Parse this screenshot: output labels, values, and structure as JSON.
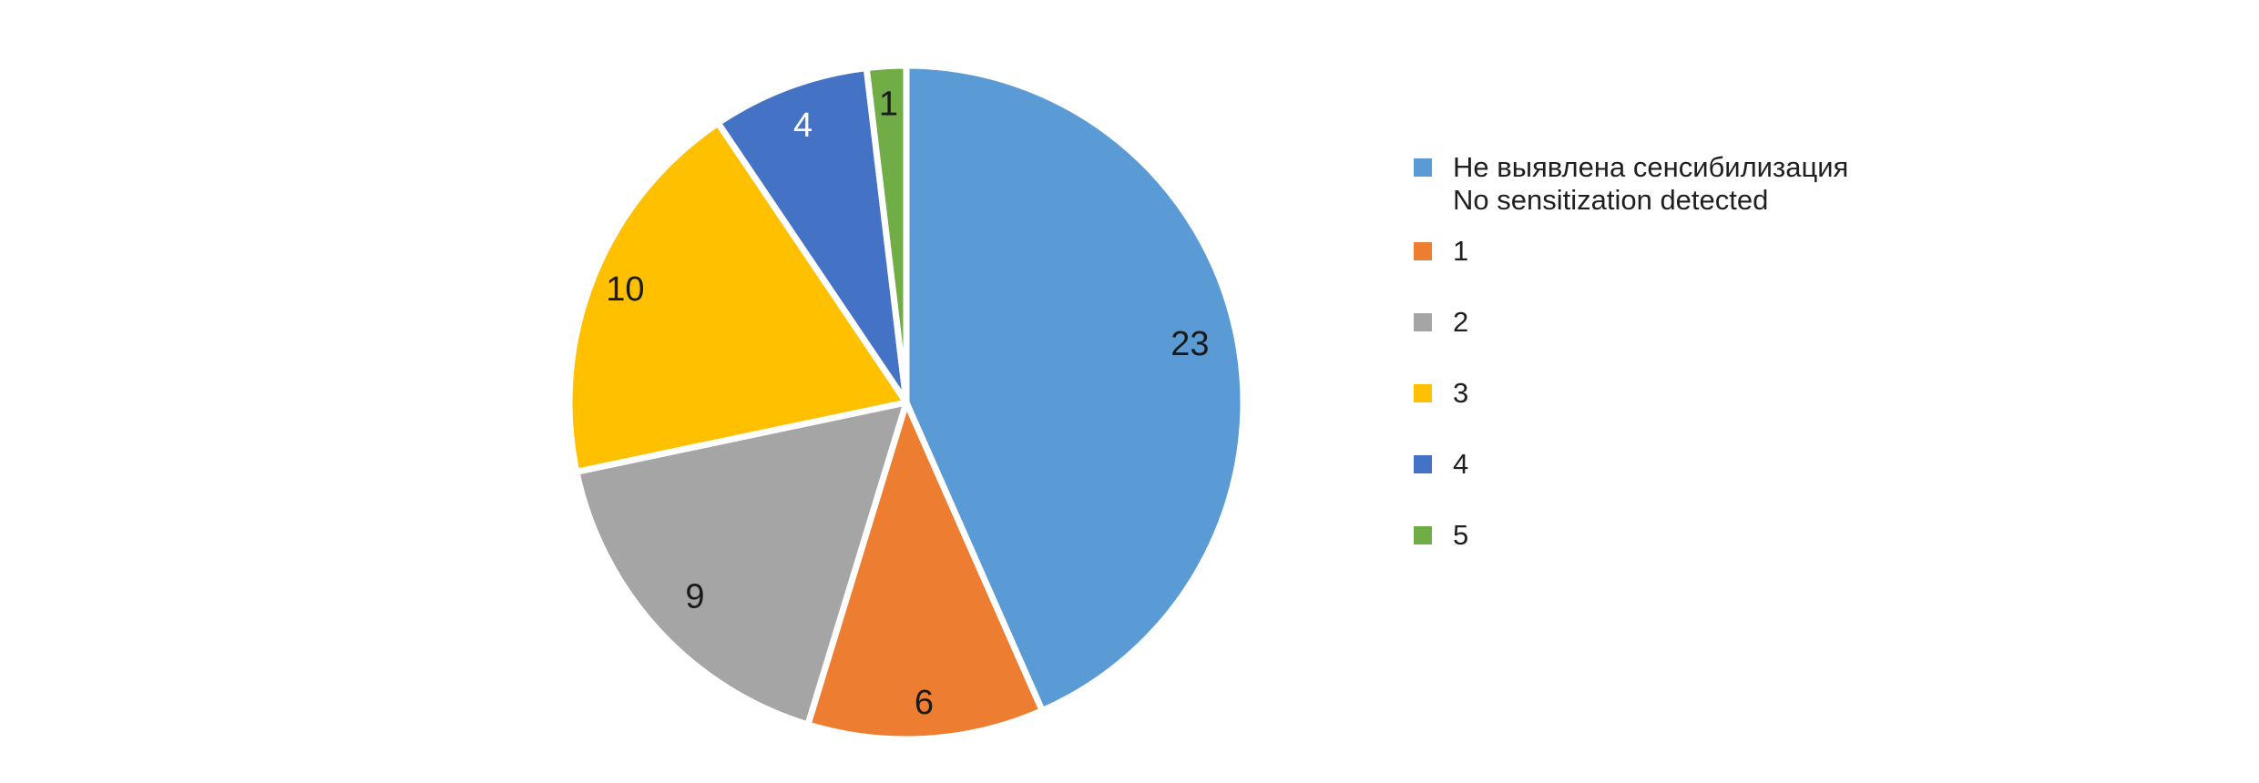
{
  "canvas": {
    "background": "#FFFFFF"
  },
  "chart_data": {
    "type": "pie",
    "title": "",
    "total": 53,
    "start_angle_deg": 0,
    "direction": "clockwise",
    "legend_position": "right",
    "data_labels_position": "inside-end",
    "separator_color": "#FFFFFF",
    "slices": [
      {
        "legend_lines": [
          "Не выявлена сенсибилизация",
          "No sensitization detected"
        ],
        "value": 23,
        "color": "#5B9BD5",
        "data_label": "23",
        "data_label_color": "#1A1A1A"
      },
      {
        "legend_lines": [
          "1"
        ],
        "value": 6,
        "color": "#ED7D31",
        "data_label": "6",
        "data_label_color": "#1A1A1A"
      },
      {
        "legend_lines": [
          "2"
        ],
        "value": 9,
        "color": "#A5A5A5",
        "data_label": "9",
        "data_label_color": "#1A1A1A"
      },
      {
        "legend_lines": [
          "3"
        ],
        "value": 10,
        "color": "#FFC000",
        "data_label": "10",
        "data_label_color": "#1A1A1A"
      },
      {
        "legend_lines": [
          "4"
        ],
        "value": 4,
        "color": "#4472C4",
        "data_label": "4",
        "data_label_color": "#FFFFFF"
      },
      {
        "legend_lines": [
          "5"
        ],
        "value": 1,
        "color": "#70AD47",
        "data_label": "1",
        "data_label_color": "#1A1A1A"
      }
    ]
  }
}
